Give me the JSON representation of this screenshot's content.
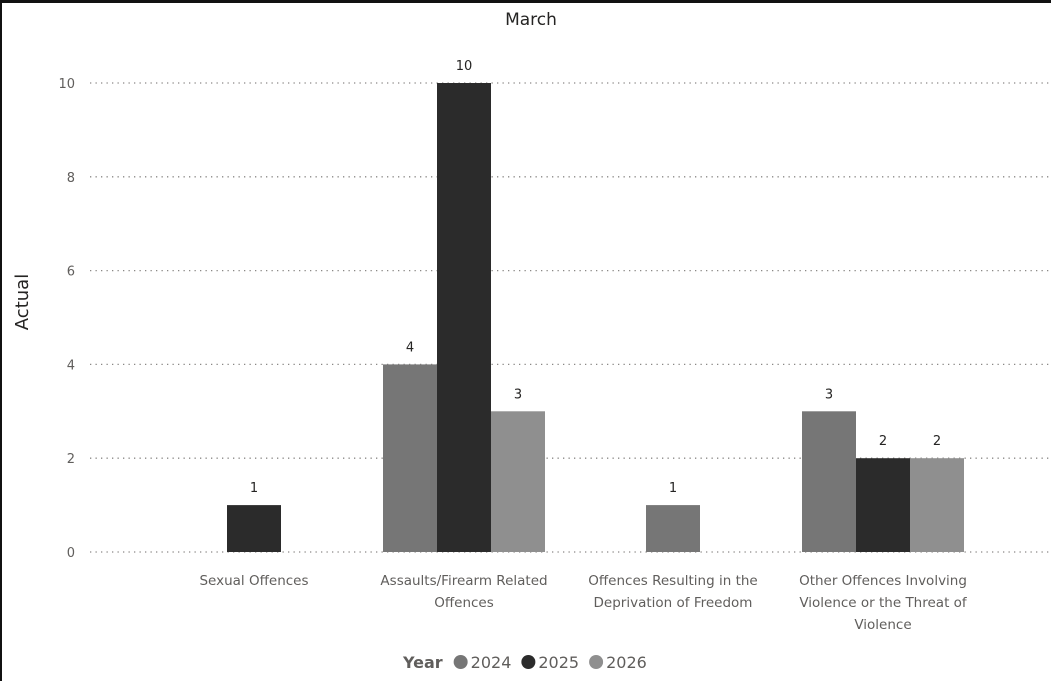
{
  "chart_data": {
    "type": "bar",
    "title": "March",
    "xlabel": "",
    "ylabel": "Actual",
    "ylim": [
      0,
      10
    ],
    "yticks": [
      "0",
      "2",
      "4",
      "6",
      "8",
      "10"
    ],
    "grid": true,
    "legend_placement": "bottom-center",
    "legend_title": "Year",
    "categories": [
      "Sexual Offences",
      "Assaults/Firearm Related Offences",
      "Offences Resulting in the Deprivation of Freedom",
      "Other Offences Involving Violence or the Threat of Violence"
    ],
    "series": [
      {
        "name": "2024",
        "color": "#767676",
        "values": [
          null,
          4,
          1,
          3
        ]
      },
      {
        "name": "2025",
        "color": "#2b2b2b",
        "values": [
          1,
          10,
          null,
          2
        ]
      },
      {
        "name": "2026",
        "color": "#8f8f8f",
        "values": [
          null,
          3,
          null,
          2
        ]
      }
    ]
  }
}
